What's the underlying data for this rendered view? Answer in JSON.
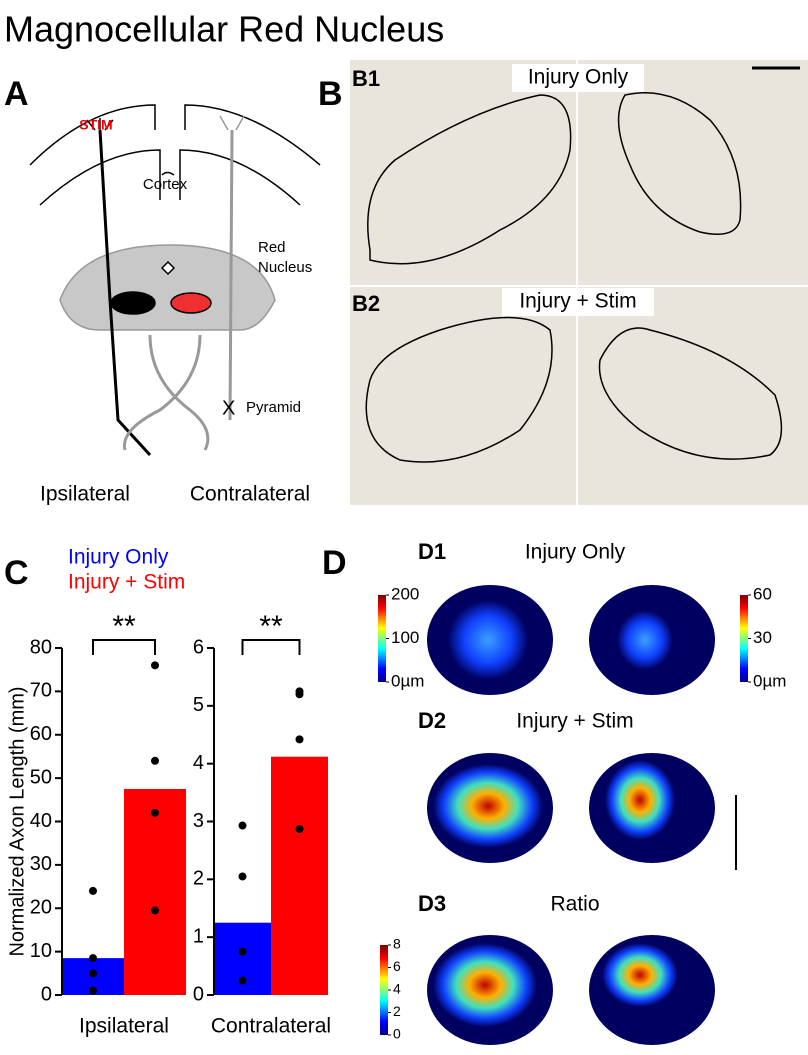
{
  "title": "Magnocellular Red Nucleus",
  "panels": {
    "A": {
      "label": "A",
      "stim": "STIM",
      "cortex": "Cortex",
      "red_nucleus": [
        "Red",
        "Nucleus"
      ],
      "cut": "X",
      "pyramid": "Pyramid",
      "ipsilateral": "Ipsilateral",
      "contralateral": "Contralateral"
    },
    "B": {
      "label": "B",
      "b1": "B1",
      "b1_title": "Injury Only",
      "b2": "B2",
      "b2_title": "Injury + Stim"
    },
    "C": {
      "label": "C"
    },
    "D": {
      "label": "D",
      "d1": "D1",
      "d1_title": "Injury Only",
      "d2": "D2",
      "d2_title": "Injury + Stim",
      "d3": "D3",
      "d3_title": "Ratio",
      "colorbars": [
        {
          "lim": [
            0,
            200
          ],
          "ticks": [
            {
              "value": 0,
              "label": "0µm"
            },
            100,
            200
          ]
        },
        {
          "lim": [
            0,
            60
          ],
          "ticks": [
            {
              "value": 0,
              "label": "0µm"
            },
            30,
            60
          ]
        },
        {
          "lim": [
            0,
            8
          ],
          "ticks": [
            0,
            2,
            4,
            6,
            8
          ]
        }
      ]
    }
  },
  "chart_data": [
    {
      "type": "bar",
      "ylabel": "Normalized Axon Length (mm)",
      "xlabel": "Ipsilateral",
      "significance": "**",
      "ylim": [
        0,
        80
      ],
      "yticks": [
        0,
        10,
        20,
        30,
        40,
        50,
        60,
        70,
        80
      ],
      "series": [
        {
          "name": "Injury Only",
          "color": "#0000ff",
          "values": [
            8.5
          ],
          "points": [
            24,
            8.5,
            5,
            1
          ]
        },
        {
          "name": "Injury + Stim",
          "color": "#ff0000",
          "values": [
            47.5
          ],
          "points": [
            76,
            54,
            42,
            19.5
          ]
        }
      ]
    },
    {
      "type": "bar",
      "xlabel": "Contralateral",
      "significance": "**",
      "ylim": [
        0,
        6
      ],
      "yticks": [
        0,
        1,
        2,
        3,
        4,
        5,
        6
      ],
      "series": [
        {
          "color": "#0000ff",
          "values": [
            1.25
          ],
          "points": [
            2.93,
            2.05,
            0.75,
            0.25
          ]
        },
        {
          "color": "#ff0000",
          "values": [
            4.12
          ],
          "points": [
            5.25,
            5.2,
            4.42,
            2.87
          ]
        }
      ]
    }
  ]
}
